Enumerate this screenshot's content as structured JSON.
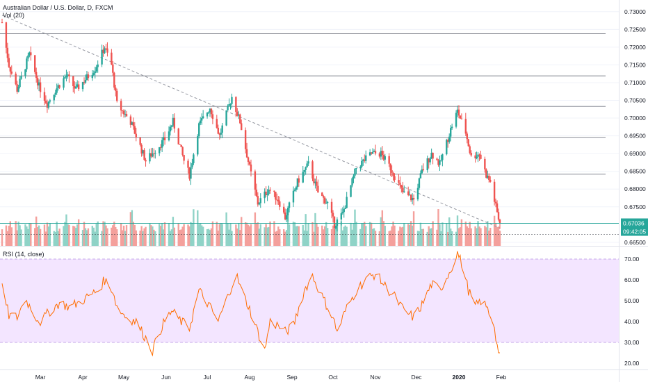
{
  "chart_data": {
    "type": "candlestick",
    "symbol": "Australian Dollar / U.S. Dollar, D, FXCM",
    "volume_label": "Vol (20)",
    "rsi_label": "RSI (14, close)",
    "last_price": "0.67036",
    "countdown": "09:42:05",
    "x_ticks": [
      "Mar",
      "Apr",
      "May",
      "Jun",
      "Jul",
      "Aug",
      "Sep",
      "Oct",
      "Nov",
      "Dec",
      "2020",
      "Feb"
    ],
    "price_ticks": [
      "0.73000",
      "0.72500",
      "0.72000",
      "0.71500",
      "0.71000",
      "0.70500",
      "0.70000",
      "0.69500",
      "0.69000",
      "0.68500",
      "0.68000",
      "0.67500",
      "0.66500"
    ],
    "rsi_ticks": [
      "70.00",
      "60.00",
      "50.00",
      "40.00",
      "30.00",
      "20.00"
    ],
    "price_range": [
      0.664,
      0.7325
    ],
    "rsi_range": [
      17,
      75
    ],
    "rsi_band": [
      30,
      70
    ],
    "horizontal_levels": [
      0.7238,
      0.7119,
      0.7033,
      0.6946,
      0.6842
    ],
    "current_price_level": 0.67036,
    "trendline": [
      {
        "date": "2019-02-01",
        "price": 0.729
      },
      {
        "date": "2020-01-31",
        "price": 0.669
      }
    ],
    "price_path": [
      [
        "2019-02-01",
        0.727
      ],
      [
        "2019-02-06",
        0.715
      ],
      [
        "2019-02-12",
        0.708
      ],
      [
        "2019-02-21",
        0.718
      ],
      [
        "2019-02-28",
        0.709
      ],
      [
        "2019-03-06",
        0.704
      ],
      [
        "2019-03-12",
        0.708
      ],
      [
        "2019-03-20",
        0.712
      ],
      [
        "2019-03-27",
        0.708
      ],
      [
        "2019-04-03",
        0.711
      ],
      [
        "2019-04-10",
        0.714
      ],
      [
        "2019-04-17",
        0.72
      ],
      [
        "2019-04-22",
        0.715
      ],
      [
        "2019-04-26",
        0.704
      ],
      [
        "2019-05-06",
        0.699
      ],
      [
        "2019-05-17",
        0.688
      ],
      [
        "2019-05-24",
        0.691
      ],
      [
        "2019-05-31",
        0.694
      ],
      [
        "2019-06-06",
        0.699
      ],
      [
        "2019-06-14",
        0.688
      ],
      [
        "2019-06-18",
        0.684
      ],
      [
        "2019-06-25",
        0.698
      ],
      [
        "2019-07-03",
        0.703
      ],
      [
        "2019-07-10",
        0.695
      ],
      [
        "2019-07-19",
        0.706
      ],
      [
        "2019-07-25",
        0.699
      ],
      [
        "2019-08-01",
        0.686
      ],
      [
        "2019-08-07",
        0.676
      ],
      [
        "2019-08-15",
        0.68
      ],
      [
        "2019-08-22",
        0.677
      ],
      [
        "2019-08-27",
        0.672
      ],
      [
        "2019-09-05",
        0.682
      ],
      [
        "2019-09-13",
        0.687
      ],
      [
        "2019-09-20",
        0.679
      ],
      [
        "2019-09-27",
        0.676
      ],
      [
        "2019-10-02",
        0.67
      ],
      [
        "2019-10-08",
        0.673
      ],
      [
        "2019-10-18",
        0.686
      ],
      [
        "2019-10-29",
        0.69
      ],
      [
        "2019-11-05",
        0.69
      ],
      [
        "2019-11-12",
        0.686
      ],
      [
        "2019-11-21",
        0.679
      ],
      [
        "2019-11-29",
        0.677
      ],
      [
        "2019-12-05",
        0.685
      ],
      [
        "2019-12-12",
        0.69
      ],
      [
        "2019-12-18",
        0.687
      ],
      [
        "2019-12-27",
        0.698
      ],
      [
        "2019-12-31",
        0.702
      ],
      [
        "2020-01-06",
        0.696
      ],
      [
        "2020-01-10",
        0.689
      ],
      [
        "2020-01-16",
        0.69
      ],
      [
        "2020-01-21",
        0.684
      ],
      [
        "2020-01-24",
        0.682
      ],
      [
        "2020-01-28",
        0.675
      ],
      [
        "2020-01-31",
        0.67
      ]
    ],
    "rsi_path": [
      [
        "2019-02-01",
        56
      ],
      [
        "2019-02-06",
        43
      ],
      [
        "2019-02-12",
        42
      ],
      [
        "2019-02-18",
        51
      ],
      [
        "2019-02-26",
        42
      ],
      [
        "2019-03-01",
        40
      ],
      [
        "2019-03-08",
        45
      ],
      [
        "2019-03-15",
        49
      ],
      [
        "2019-03-22",
        47
      ],
      [
        "2019-03-29",
        49
      ],
      [
        "2019-04-05",
        52
      ],
      [
        "2019-04-12",
        55
      ],
      [
        "2019-04-17",
        60
      ],
      [
        "2019-04-23",
        55
      ],
      [
        "2019-04-26",
        47
      ],
      [
        "2019-05-03",
        42
      ],
      [
        "2019-05-10",
        40
      ],
      [
        "2019-05-17",
        32
      ],
      [
        "2019-05-22",
        26
      ],
      [
        "2019-05-29",
        38
      ],
      [
        "2019-06-05",
        45
      ],
      [
        "2019-06-12",
        40
      ],
      [
        "2019-06-18",
        37
      ],
      [
        "2019-06-25",
        55
      ],
      [
        "2019-07-02",
        48
      ],
      [
        "2019-07-09",
        40
      ],
      [
        "2019-07-16",
        52
      ],
      [
        "2019-07-22",
        63
      ],
      [
        "2019-07-26",
        55
      ],
      [
        "2019-08-01",
        46
      ],
      [
        "2019-08-07",
        35
      ],
      [
        "2019-08-12",
        26
      ],
      [
        "2019-08-16",
        40
      ],
      [
        "2019-08-22",
        38
      ],
      [
        "2019-08-27",
        35
      ],
      [
        "2019-09-02",
        38
      ],
      [
        "2019-09-10",
        55
      ],
      [
        "2019-09-16",
        62
      ],
      [
        "2019-09-23",
        52
      ],
      [
        "2019-10-01",
        42
      ],
      [
        "2019-10-04",
        35
      ],
      [
        "2019-10-10",
        45
      ],
      [
        "2019-10-18",
        55
      ],
      [
        "2019-10-25",
        60
      ],
      [
        "2019-11-01",
        63
      ],
      [
        "2019-11-08",
        57
      ],
      [
        "2019-11-15",
        52
      ],
      [
        "2019-11-22",
        45
      ],
      [
        "2019-11-29",
        42
      ],
      [
        "2019-12-05",
        48
      ],
      [
        "2019-12-12",
        58
      ],
      [
        "2019-12-18",
        55
      ],
      [
        "2019-12-26",
        65
      ],
      [
        "2019-12-31",
        73
      ],
      [
        "2020-01-03",
        68
      ],
      [
        "2020-01-08",
        55
      ],
      [
        "2020-01-13",
        47
      ],
      [
        "2020-01-17",
        50
      ],
      [
        "2020-01-21",
        47
      ],
      [
        "2020-01-24",
        43
      ],
      [
        "2020-01-27",
        38
      ],
      [
        "2020-01-29",
        28
      ],
      [
        "2020-01-31",
        25
      ]
    ]
  },
  "colors": {
    "up": "#26a69a",
    "down": "#ef5350",
    "up_volume": "#8fd3c7",
    "down_volume": "#f4a09c",
    "level_line": "#787b86",
    "price_line": "#26a69a",
    "trendline": "#9598a1",
    "rsi_line": "#ff6d00",
    "rsi_band": "#f3e5ff",
    "rsi_band_border": "#c5a8e8"
  }
}
